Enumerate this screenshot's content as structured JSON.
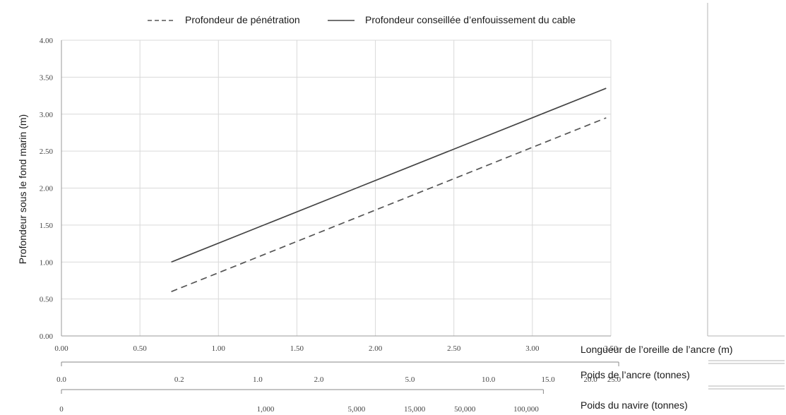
{
  "chart_data": {
    "type": "line",
    "title": "",
    "legend": {
      "placement": "top",
      "entries": [
        "Profondeur de pénétration",
        "Profondeur conseillée d’enfouissement du cable"
      ]
    },
    "ylabel": "Profondeur sous le fond marin (m)",
    "xlabel": "Longueur de l’oreille de l’ancre (m)",
    "xlim": [
      0,
      3.5
    ],
    "ylim": [
      0,
      4
    ],
    "x_ticks": [
      "0.00",
      "0.50",
      "1.00",
      "1.50",
      "2.00",
      "2.50",
      "3.00",
      "3.50"
    ],
    "x_tick_values": [
      0,
      0.5,
      1,
      1.5,
      2,
      2.5,
      3,
      3.5
    ],
    "y_ticks": [
      "0.00",
      "0.50",
      "1.00",
      "1.50",
      "2.00",
      "2.50",
      "3.00",
      "3.50",
      "4.00"
    ],
    "y_tick_values": [
      0,
      0.5,
      1,
      1.5,
      2,
      2.5,
      3,
      3.5,
      4
    ],
    "grid": true,
    "series": [
      {
        "name": "Profondeur de pénétration",
        "style": "dashed",
        "color": "#555555",
        "x": [
          0.7,
          3.47
        ],
        "y": [
          0.6,
          2.95
        ]
      },
      {
        "name": "Profondeur conseillée d’enfouissement du cable",
        "style": "solid",
        "color": "#444444",
        "x": [
          0.7,
          3.47
        ],
        "y": [
          1.0,
          3.35
        ]
      }
    ],
    "secondary_scales": [
      {
        "label": "Poids de l’ancre (tonnes)",
        "ticks": [
          {
            "text": "0.0",
            "x": 0
          },
          {
            "text": "0.2",
            "x": 0.75
          },
          {
            "text": "1.0",
            "x": 1.25
          },
          {
            "text": "2.0",
            "x": 1.64
          },
          {
            "text": "5.0",
            "x": 2.22
          },
          {
            "text": "10.0",
            "x": 2.72
          },
          {
            "text": "15.0",
            "x": 3.1
          },
          {
            "text": "20.0",
            "x": 3.37
          },
          {
            "text": "25.0",
            "x": 3.52
          }
        ]
      },
      {
        "label": "Poids du navire (tonnes)",
        "ticks": [
          {
            "text": "0",
            "x": 0
          },
          {
            "text": "1,000",
            "x": 1.3
          },
          {
            "text": "5,000",
            "x": 1.88
          },
          {
            "text": "15,000",
            "x": 2.25
          },
          {
            "text": "50,000",
            "x": 2.57
          },
          {
            "text": "100,000",
            "x": 2.96
          }
        ]
      }
    ]
  }
}
